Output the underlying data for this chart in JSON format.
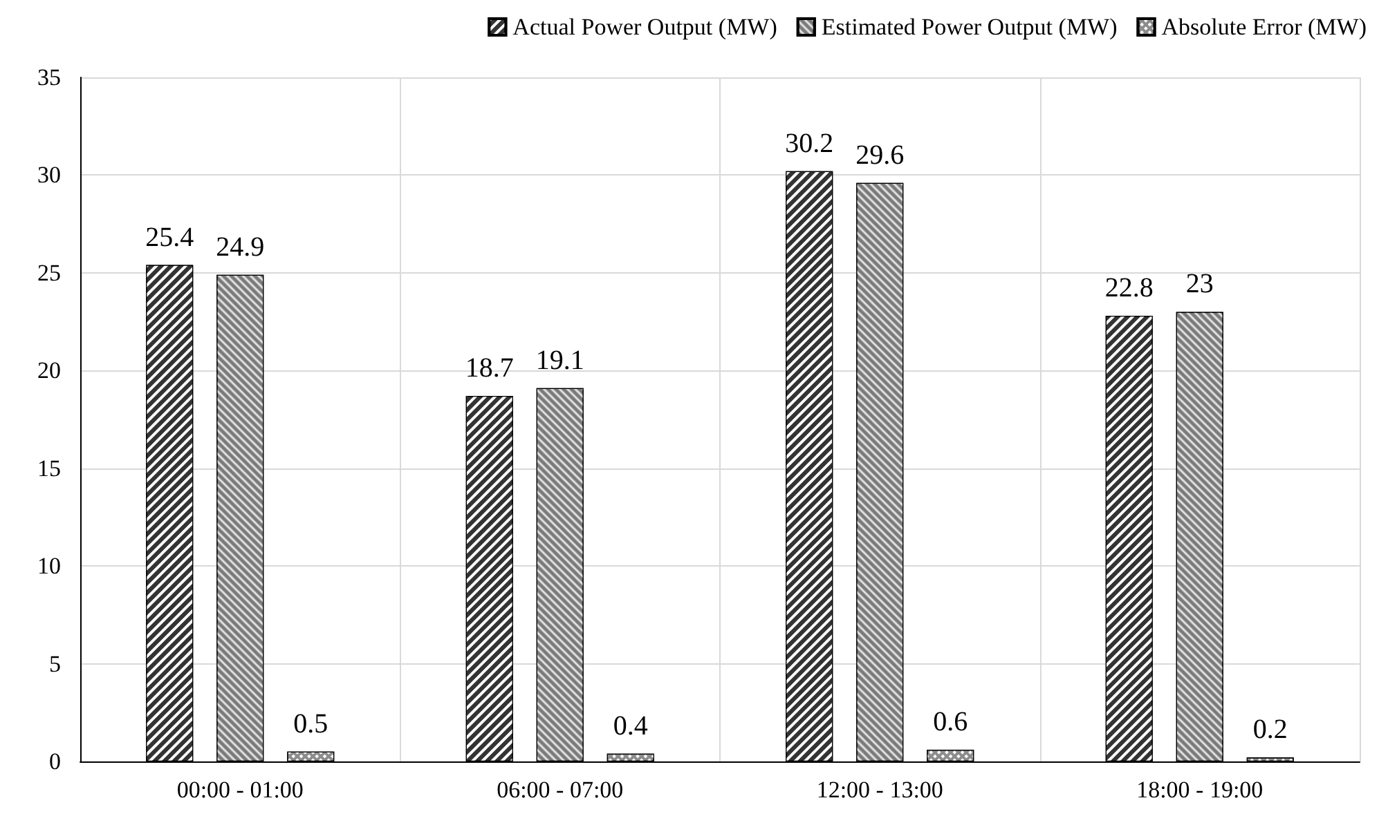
{
  "chart_data": {
    "type": "bar",
    "categories": [
      "00:00 - 01:00",
      "06:00 - 07:00",
      "12:00 - 13:00",
      "18:00 - 19:00"
    ],
    "series": [
      {
        "name": "Actual Power Output (MW)",
        "color": "#333333",
        "values": [
          25.4,
          18.7,
          30.2,
          22.8
        ]
      },
      {
        "name": "Estimated Power Output (MW)",
        "color": "#7a7a7a",
        "values": [
          24.9,
          19.1,
          29.6,
          23
        ]
      },
      {
        "name": "Absolute Error (MW)",
        "color": "#8c8c8c",
        "values": [
          0.5,
          0.4,
          0.6,
          0.2
        ]
      }
    ],
    "ylim": [
      0,
      35
    ],
    "yticks": [
      0,
      5,
      10,
      15,
      20,
      25,
      30,
      35
    ],
    "grid": true,
    "legend": "top right",
    "data_labels": true
  }
}
